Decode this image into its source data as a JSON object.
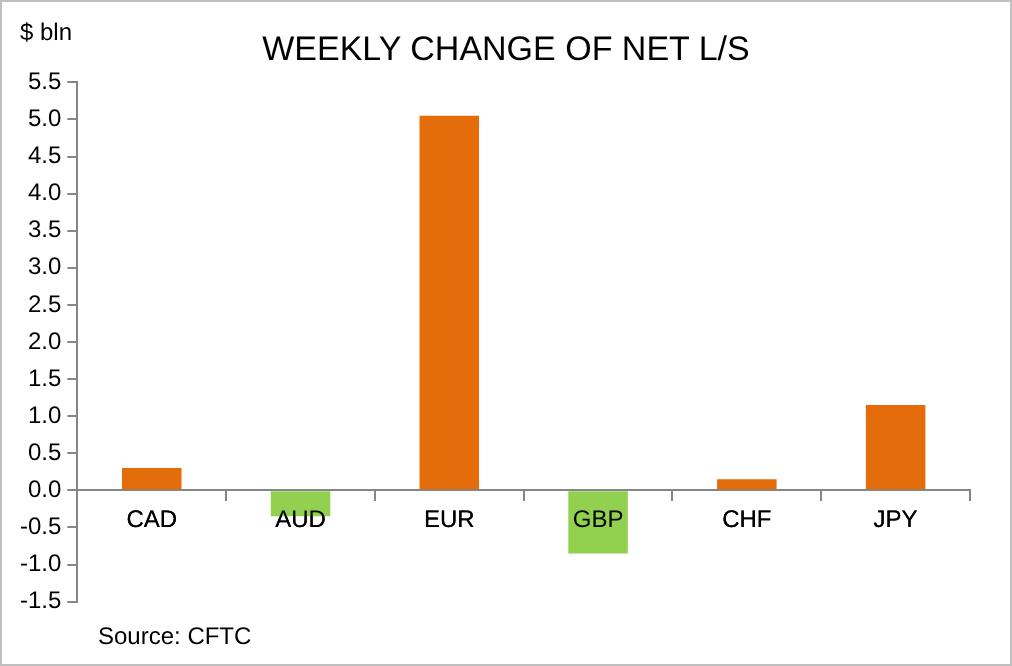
{
  "chart_data": {
    "type": "bar",
    "title": "WEEKLY CHANGE OF NET L/S",
    "ylabel": "$ bln",
    "categories": [
      "CAD",
      "AUD",
      "EUR",
      "GBP",
      "CHF",
      "JPY"
    ],
    "values": [
      0.3,
      -0.35,
      5.05,
      -0.85,
      0.15,
      1.15
    ],
    "colors": [
      "#e46c0a",
      "#92d050",
      "#e46c0a",
      "#92d050",
      "#e46c0a",
      "#e46c0a"
    ],
    "ylim": [
      -1.5,
      5.5
    ],
    "yticks": [
      {
        "value": 5.5,
        "label": "5.5"
      },
      {
        "value": 5,
        "label": "5.0"
      },
      {
        "value": 4.5,
        "label": "4.5"
      },
      {
        "value": 4,
        "label": "4.0"
      },
      {
        "value": 3.5,
        "label": "3.5"
      },
      {
        "value": 3,
        "label": "3.0"
      },
      {
        "value": 2.5,
        "label": "2.5"
      },
      {
        "value": 2,
        "label": "2.0"
      },
      {
        "value": 1.5,
        "label": "1.5"
      },
      {
        "value": 1,
        "label": "1.0"
      },
      {
        "value": 0.5,
        "label": "0.5"
      },
      {
        "value": 0,
        "label": "0.0"
      },
      {
        "value": -0.5,
        "label": "-0.5"
      },
      {
        "value": -1,
        "label": "-1.0"
      },
      {
        "value": -1.5,
        "label": "-1.5"
      }
    ],
    "grid": false,
    "legend": false,
    "annotations": [
      "Source: CFTC"
    ]
  }
}
